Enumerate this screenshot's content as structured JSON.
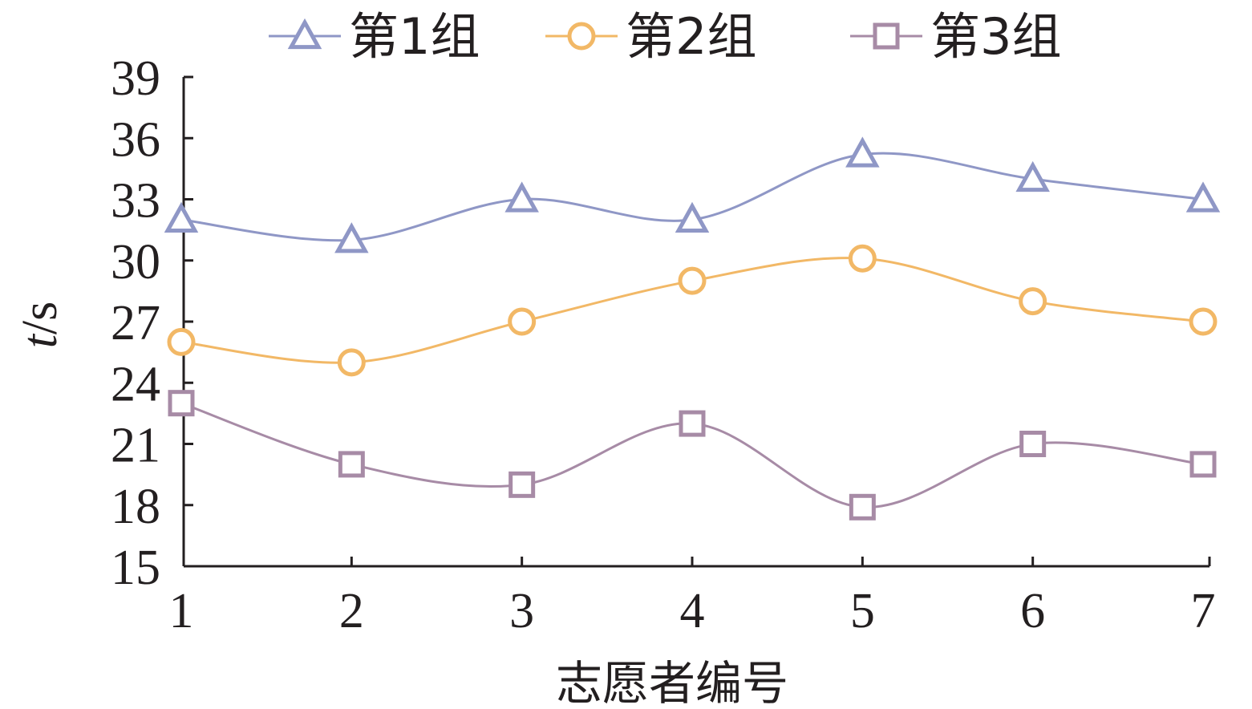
{
  "chart_data": {
    "type": "line",
    "xlabel": "志愿者编号",
    "ylabel_italic": "t",
    "ylabel_unit": "/s",
    "x": [
      1,
      2,
      3,
      4,
      5,
      6,
      7
    ],
    "x_tick_labels": [
      "1",
      "2",
      "3",
      "4",
      "5",
      "6",
      "7"
    ],
    "ylim": [
      15,
      39
    ],
    "y_ticks": [
      15,
      18,
      21,
      24,
      27,
      30,
      33,
      36,
      39
    ],
    "y_tick_labels": [
      "15",
      "18",
      "21",
      "24",
      "27",
      "30",
      "33",
      "36",
      "39"
    ],
    "grid": false,
    "legend_position": "top",
    "series": [
      {
        "name": "第1组",
        "marker": "triangle",
        "color": "#8f97c6",
        "values": [
          32,
          31,
          33,
          32,
          35.2,
          34,
          33
        ]
      },
      {
        "name": "第2组",
        "marker": "circle",
        "color": "#f2b866",
        "values": [
          26,
          25,
          27,
          29,
          30.1,
          28,
          27
        ]
      },
      {
        "name": "第3组",
        "marker": "square",
        "color": "#a78ba6",
        "values": [
          23,
          20,
          19,
          22,
          17.9,
          21,
          20
        ]
      }
    ]
  }
}
